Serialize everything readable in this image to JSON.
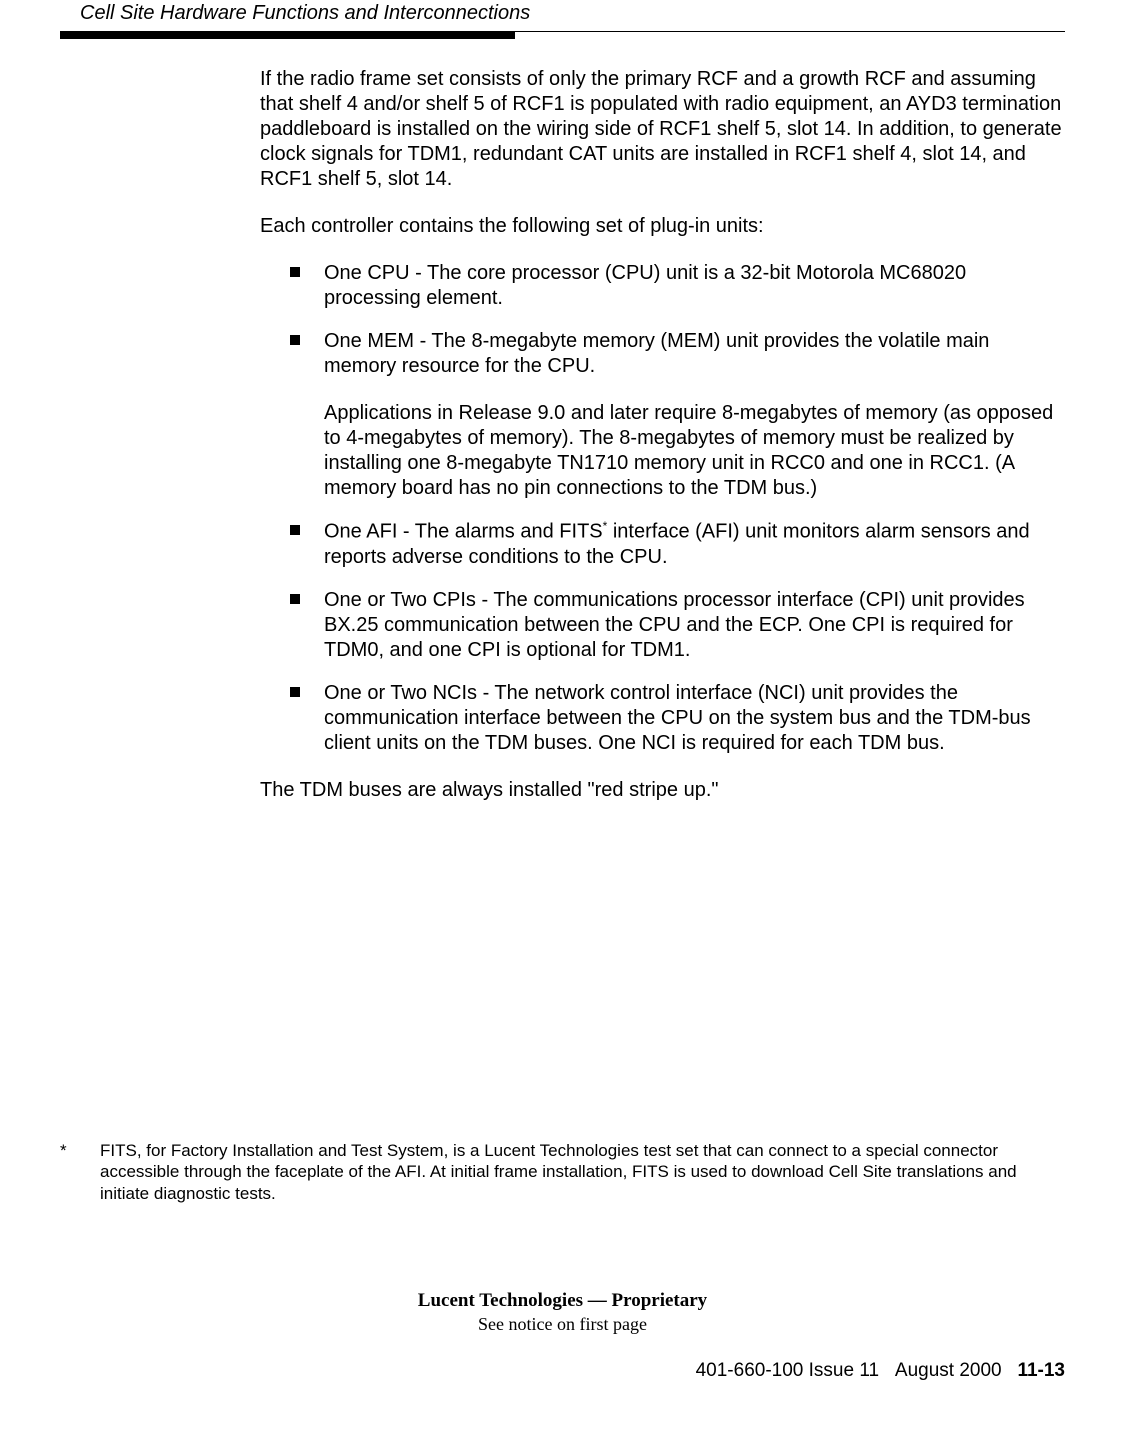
{
  "header": {
    "title": "Cell Site Hardware Functions and Interconnections"
  },
  "content": {
    "para1": "If the radio frame set consists of only the primary RCF and a growth RCF and assuming that shelf 4 and/or shelf 5 of RCF1 is populated with radio equipment, an AYD3 termination paddleboard is installed on the wiring side of RCF1 shelf 5, slot 14. In addition, to generate clock signals for TDM1, redundant CAT units are installed in RCF1 shelf 4, slot 14, and RCF1 shelf 5, slot 14.",
    "para2": "Each controller contains the following set of plug-in units:",
    "bullets": [
      {
        "text": "One CPU - The core processor (CPU) unit is a 32-bit Motorola MC68020 processing element."
      },
      {
        "text": "One MEM - The 8-megabyte memory (MEM) unit provides the volatile main memory resource for the CPU.",
        "sub": "Applications in Release 9.0 and later require 8-megabytes of memory (as opposed to 4-megabytes of memory). The 8-megabytes of memory must be realized by installing one 8-megabyte TN1710 memory unit in RCC0 and one in RCC1. (A memory board has no pin connections to the TDM bus.)"
      },
      {
        "text_pre": "One AFI - The alarms and FITS",
        "sup": "*",
        "text_post": " interface (AFI) unit monitors alarm sensors and reports adverse conditions to the CPU."
      },
      {
        "text": "One or Two CPIs - The communications processor interface (CPI) unit provides BX.25 communication between the CPU and the ECP. One CPI is required for TDM0, and one CPI is optional for TDM1."
      },
      {
        "text": "One or Two NCIs - The network control interface (NCI) unit provides the communication interface between the CPU on the system bus and the TDM-bus client units on the TDM buses. One NCI is required for each TDM bus."
      }
    ],
    "para3": "The TDM buses are always installed \"red stripe up.\""
  },
  "footnote": {
    "marker": "*",
    "text": "FITS, for Factory Installation and Test System, is a Lucent Technologies test set that can connect to a special connector accessible through the faceplate of the AFI. At initial frame installation, FITS is used to download Cell Site translations and initiate diagnostic tests."
  },
  "footer": {
    "proprietary": "Lucent Technologies — Proprietary",
    "notice": "See notice on first page",
    "doc_id": "401-660-100 Issue 11",
    "date": "August 2000",
    "page": "11-13"
  }
}
